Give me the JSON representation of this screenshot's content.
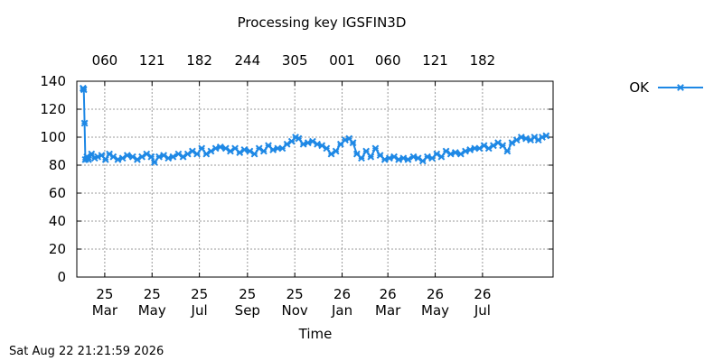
{
  "footer_timestamp": "Sat Aug 22 21:21:59 2026",
  "chart_data": {
    "type": "line",
    "title": "Processing key IGSFIN3D",
    "xlabel": "Time",
    "ylabel": "",
    "ylim": [
      0,
      140
    ],
    "yticks": [
      0,
      20,
      40,
      60,
      80,
      100,
      120,
      140
    ],
    "grid": true,
    "legend_position": "top-right",
    "xlim": [
      "2025-01-24",
      "2026-09-30"
    ],
    "bottom_ticks": [
      {
        "date": "2025-03-01",
        "line1": "25",
        "line2": "Mar"
      },
      {
        "date": "2025-05-01",
        "line1": "25",
        "line2": "May"
      },
      {
        "date": "2025-07-01",
        "line1": "25",
        "line2": "Jul"
      },
      {
        "date": "2025-09-01",
        "line1": "25",
        "line2": "Sep"
      },
      {
        "date": "2025-11-01",
        "line1": "25",
        "line2": "Nov"
      },
      {
        "date": "2026-01-01",
        "line1": "26",
        "line2": "Jan"
      },
      {
        "date": "2026-03-01",
        "line1": "26",
        "line2": "Mar"
      },
      {
        "date": "2026-05-01",
        "line1": "26",
        "line2": "May"
      },
      {
        "date": "2026-07-01",
        "line1": "26",
        "line2": "Jul"
      }
    ],
    "top_ticks": [
      {
        "date": "2025-03-01",
        "label": "060"
      },
      {
        "date": "2025-05-01",
        "label": "121"
      },
      {
        "date": "2025-07-01",
        "label": "182"
      },
      {
        "date": "2025-09-01",
        "label": "244"
      },
      {
        "date": "2025-11-01",
        "label": "305"
      },
      {
        "date": "2026-01-01",
        "label": "001"
      },
      {
        "date": "2026-03-01",
        "label": "060"
      },
      {
        "date": "2026-05-01",
        "label": "121"
      },
      {
        "date": "2026-07-01",
        "label": "182"
      }
    ],
    "series": [
      {
        "name": "OK",
        "color": "#1e88e5",
        "marker": "x",
        "x": [
          "2025-02-01",
          "2025-02-02",
          "2025-02-03",
          "2025-02-04",
          "2025-02-06",
          "2025-02-08",
          "2025-02-12",
          "2025-02-16",
          "2025-02-20",
          "2025-02-25",
          "2025-03-02",
          "2025-03-07",
          "2025-03-12",
          "2025-03-18",
          "2025-03-24",
          "2025-03-30",
          "2025-04-06",
          "2025-04-12",
          "2025-04-18",
          "2025-04-24",
          "2025-04-30",
          "2025-05-04",
          "2025-05-10",
          "2025-05-16",
          "2025-05-22",
          "2025-05-28",
          "2025-06-04",
          "2025-06-10",
          "2025-06-16",
          "2025-06-22",
          "2025-06-28",
          "2025-07-04",
          "2025-07-10",
          "2025-07-16",
          "2025-07-22",
          "2025-07-28",
          "2025-08-04",
          "2025-08-10",
          "2025-08-16",
          "2025-08-22",
          "2025-08-28",
          "2025-09-04",
          "2025-09-10",
          "2025-09-16",
          "2025-09-22",
          "2025-09-28",
          "2025-10-04",
          "2025-10-10",
          "2025-10-16",
          "2025-10-22",
          "2025-10-28",
          "2025-11-02",
          "2025-11-06",
          "2025-11-12",
          "2025-11-18",
          "2025-11-24",
          "2025-11-30",
          "2025-12-06",
          "2025-12-12",
          "2025-12-18",
          "2025-12-24",
          "2025-12-30",
          "2026-01-05",
          "2026-01-10",
          "2026-01-15",
          "2026-01-20",
          "2026-01-26",
          "2026-02-01",
          "2026-02-07",
          "2026-02-13",
          "2026-02-19",
          "2026-02-25",
          "2026-03-03",
          "2026-03-09",
          "2026-03-15",
          "2026-03-21",
          "2026-03-27",
          "2026-04-03",
          "2026-04-09",
          "2026-04-15",
          "2026-04-21",
          "2026-04-27",
          "2026-05-03",
          "2026-05-09",
          "2026-05-15",
          "2026-05-21",
          "2026-05-27",
          "2026-06-03",
          "2026-06-09",
          "2026-06-15",
          "2026-06-21",
          "2026-06-27",
          "2026-07-03",
          "2026-07-09",
          "2026-07-15",
          "2026-07-21",
          "2026-07-27",
          "2026-08-02",
          "2026-08-08",
          "2026-08-14",
          "2026-08-20",
          "2026-08-26",
          "2026-09-01",
          "2026-09-06",
          "2026-09-11",
          "2026-09-16",
          "2026-09-21"
        ],
        "y": [
          135,
          134,
          110,
          84,
          86,
          84,
          88,
          85,
          86,
          87,
          84,
          88,
          86,
          84,
          85,
          87,
          86,
          84,
          86,
          88,
          86,
          82,
          86,
          87,
          85,
          86,
          88,
          86,
          88,
          90,
          88,
          92,
          88,
          90,
          92,
          93,
          92,
          90,
          92,
          89,
          91,
          90,
          88,
          92,
          90,
          94,
          91,
          92,
          92,
          95,
          97,
          100,
          99,
          95,
          96,
          97,
          95,
          94,
          92,
          88,
          90,
          95,
          98,
          99,
          96,
          88,
          85,
          90,
          86,
          92,
          87,
          84,
          85,
          86,
          84,
          85,
          84,
          86,
          85,
          83,
          86,
          85,
          88,
          86,
          90,
          88,
          89,
          88,
          90,
          91,
          92,
          92,
          94,
          92,
          94,
          96,
          94,
          90,
          96,
          98,
          100,
          99,
          98,
          100,
          98,
          100,
          101
        ]
      }
    ]
  }
}
